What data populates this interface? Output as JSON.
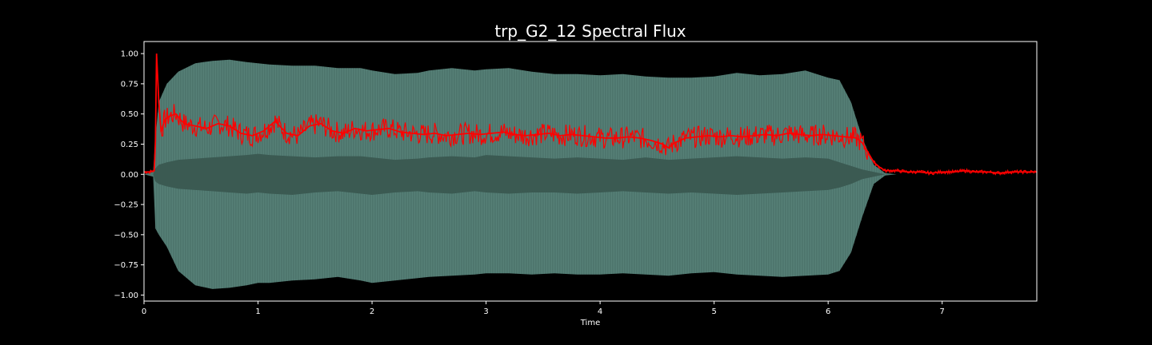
{
  "chart_data": {
    "type": "line",
    "title": "trp_G2_12 Spectral Flux",
    "xlabel": "Time",
    "ylabel": "",
    "xlim": [
      0,
      7.83
    ],
    "ylim": [
      -1.05,
      1.1
    ],
    "x_ticks": [
      0,
      1,
      2,
      3,
      4,
      5,
      6,
      7
    ],
    "x_tick_labels": [
      "0",
      "1",
      "2",
      "3",
      "4",
      "5",
      "6",
      "7"
    ],
    "y_ticks": [
      1.0,
      0.75,
      0.5,
      0.25,
      0.0,
      -0.25,
      -0.5,
      -0.75,
      -1.0
    ],
    "y_tick_labels": [
      "1.00",
      "0.75",
      "0.50",
      "0.25",
      "0.00",
      "−0.25",
      "−0.50",
      "−0.75",
      "−1.00"
    ],
    "grid": false,
    "background": "#000000",
    "waveform": {
      "color": "#5a8a80",
      "inner_color": "#3b5a52",
      "envelope_x": [
        0,
        0.08,
        0.1,
        0.13,
        0.2,
        0.3,
        0.45,
        0.6,
        0.75,
        0.9,
        1.0,
        1.1,
        1.3,
        1.5,
        1.7,
        1.9,
        2.0,
        2.2,
        2.4,
        2.5,
        2.7,
        2.9,
        3.0,
        3.2,
        3.4,
        3.6,
        3.8,
        4.0,
        4.2,
        4.4,
        4.6,
        4.8,
        5.0,
        5.2,
        5.4,
        5.6,
        5.8,
        6.0,
        6.1,
        6.2,
        6.3,
        6.4,
        6.5,
        6.6,
        7.83
      ],
      "envelope_top": [
        0.0,
        0.02,
        0.3,
        0.6,
        0.75,
        0.85,
        0.92,
        0.94,
        0.95,
        0.93,
        0.92,
        0.91,
        0.9,
        0.9,
        0.88,
        0.88,
        0.86,
        0.83,
        0.84,
        0.86,
        0.88,
        0.86,
        0.87,
        0.88,
        0.85,
        0.83,
        0.83,
        0.82,
        0.83,
        0.81,
        0.8,
        0.8,
        0.81,
        0.84,
        0.82,
        0.83,
        0.86,
        0.8,
        0.78,
        0.6,
        0.3,
        0.08,
        0.01,
        0.0,
        0.0
      ],
      "envelope_bottom": [
        0.0,
        -0.02,
        -0.45,
        -0.5,
        -0.6,
        -0.8,
        -0.92,
        -0.95,
        -0.94,
        -0.92,
        -0.9,
        -0.9,
        -0.88,
        -0.87,
        -0.85,
        -0.88,
        -0.9,
        -0.88,
        -0.86,
        -0.85,
        -0.84,
        -0.83,
        -0.82,
        -0.82,
        -0.83,
        -0.82,
        -0.83,
        -0.83,
        -0.82,
        -0.83,
        -0.84,
        -0.82,
        -0.81,
        -0.83,
        -0.84,
        -0.85,
        -0.84,
        -0.83,
        -0.8,
        -0.65,
        -0.35,
        -0.08,
        -0.01,
        0.0,
        0.0
      ],
      "inner_top": [
        0.0,
        0.0,
        0.05,
        0.08,
        0.1,
        0.12,
        0.13,
        0.14,
        0.15,
        0.16,
        0.17,
        0.16,
        0.15,
        0.14,
        0.15,
        0.15,
        0.14,
        0.12,
        0.13,
        0.14,
        0.15,
        0.14,
        0.16,
        0.15,
        0.14,
        0.13,
        0.14,
        0.13,
        0.12,
        0.14,
        0.12,
        0.13,
        0.14,
        0.15,
        0.14,
        0.13,
        0.14,
        0.13,
        0.1,
        0.07,
        0.04,
        0.02,
        0.0,
        0.0,
        0.0
      ],
      "inner_bottom": [
        0.0,
        0.0,
        -0.06,
        -0.08,
        -0.1,
        -0.12,
        -0.13,
        -0.14,
        -0.15,
        -0.16,
        -0.15,
        -0.16,
        -0.17,
        -0.15,
        -0.14,
        -0.16,
        -0.17,
        -0.15,
        -0.14,
        -0.15,
        -0.16,
        -0.14,
        -0.15,
        -0.16,
        -0.15,
        -0.15,
        -0.16,
        -0.15,
        -0.14,
        -0.15,
        -0.16,
        -0.15,
        -0.16,
        -0.17,
        -0.16,
        -0.15,
        -0.14,
        -0.13,
        -0.11,
        -0.08,
        -0.04,
        -0.02,
        0.0,
        0.0,
        0.0
      ]
    },
    "series": [
      {
        "color": "#ff0000",
        "x": [
          0,
          0.05,
          0.09,
          0.1,
          0.11,
          0.13,
          0.15,
          0.18,
          0.22,
          0.28,
          0.35,
          0.45,
          0.55,
          0.65,
          0.75,
          0.85,
          0.95,
          1.05,
          1.15,
          1.25,
          1.35,
          1.45,
          1.55,
          1.65,
          1.75,
          1.85,
          1.95,
          2.05,
          2.15,
          2.25,
          2.35,
          2.45,
          2.55,
          2.65,
          2.75,
          2.85,
          2.95,
          3.05,
          3.15,
          3.25,
          3.35,
          3.45,
          3.55,
          3.65,
          3.75,
          3.85,
          3.95,
          4.05,
          4.15,
          4.25,
          4.35,
          4.45,
          4.55,
          4.6,
          4.65,
          4.75,
          4.85,
          4.95,
          5.05,
          5.15,
          5.25,
          5.35,
          5.45,
          5.55,
          5.65,
          5.75,
          5.85,
          5.95,
          6.05,
          6.15,
          6.25,
          6.3,
          6.35,
          6.4,
          6.45,
          6.5,
          6.6,
          6.7,
          6.8,
          6.9,
          7.0,
          7.1,
          7.2,
          7.3,
          7.4,
          7.5,
          7.6,
          7.7,
          7.83
        ],
        "y": [
          0.02,
          0.02,
          0.03,
          0.28,
          1.0,
          0.6,
          0.35,
          0.45,
          0.48,
          0.5,
          0.42,
          0.4,
          0.38,
          0.42,
          0.4,
          0.34,
          0.32,
          0.36,
          0.44,
          0.34,
          0.32,
          0.4,
          0.42,
          0.36,
          0.34,
          0.38,
          0.36,
          0.37,
          0.38,
          0.35,
          0.34,
          0.33,
          0.34,
          0.32,
          0.33,
          0.34,
          0.33,
          0.34,
          0.35,
          0.33,
          0.32,
          0.33,
          0.34,
          0.32,
          0.33,
          0.32,
          0.31,
          0.3,
          0.3,
          0.31,
          0.3,
          0.28,
          0.25,
          0.22,
          0.26,
          0.3,
          0.31,
          0.32,
          0.31,
          0.32,
          0.31,
          0.32,
          0.33,
          0.32,
          0.34,
          0.33,
          0.32,
          0.33,
          0.32,
          0.31,
          0.3,
          0.26,
          0.18,
          0.1,
          0.06,
          0.03,
          0.03,
          0.02,
          0.02,
          0.01,
          0.02,
          0.02,
          0.03,
          0.02,
          0.02,
          0.01,
          0.02,
          0.02,
          0.02
        ]
      }
    ]
  }
}
